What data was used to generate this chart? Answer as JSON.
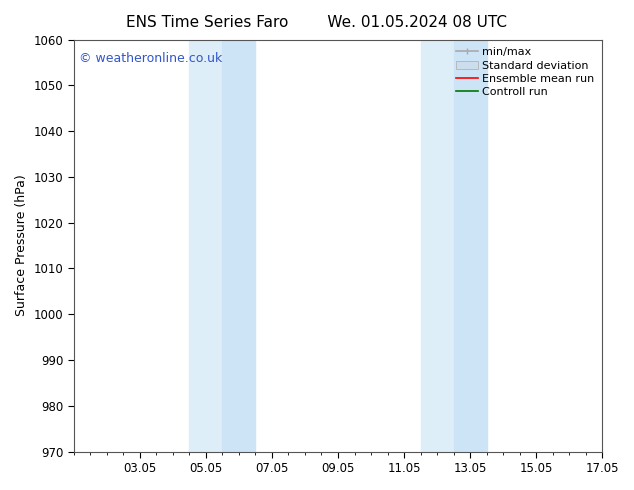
{
  "title_left": "ENS Time Series Faro",
  "title_right": "We. 01.05.2024 08 UTC",
  "ylabel": "Surface Pressure (hPa)",
  "ylim": [
    970,
    1060
  ],
  "yticks": [
    970,
    980,
    990,
    1000,
    1010,
    1020,
    1030,
    1040,
    1050,
    1060
  ],
  "xlim": [
    0,
    16
  ],
  "xtick_labels": [
    "03.05",
    "05.05",
    "07.05",
    "09.05",
    "11.05",
    "13.05",
    "15.05",
    "17.05"
  ],
  "xtick_positions": [
    2,
    4,
    6,
    8,
    10,
    12,
    14,
    16
  ],
  "background_color": "#ffffff",
  "shaded_bands": [
    {
      "xstart": 3.5,
      "xend": 4.5,
      "color": "#ddeef8"
    },
    {
      "xstart": 4.5,
      "xend": 5.5,
      "color": "#cce4f5"
    },
    {
      "xstart": 10.5,
      "xend": 11.5,
      "color": "#ddeef8"
    },
    {
      "xstart": 11.5,
      "xend": 12.5,
      "color": "#cce4f5"
    }
  ],
  "watermark_text": "© weatheronline.co.uk",
  "watermark_color": "#3355cc",
  "legend_entries": [
    {
      "label": "min/max",
      "type": "hline",
      "color": "#aaaaaa",
      "linewidth": 1.2
    },
    {
      "label": "Standard deviation",
      "type": "patch",
      "color": "#ccddee"
    },
    {
      "label": "Ensemble mean run",
      "type": "line",
      "color": "#ff0000",
      "linewidth": 1.2
    },
    {
      "label": "Controll run",
      "type": "line",
      "color": "#007700",
      "linewidth": 1.2
    }
  ],
  "title_fontsize": 11,
  "label_fontsize": 9,
  "tick_fontsize": 8.5,
  "legend_fontsize": 8,
  "watermark_fontsize": 9
}
